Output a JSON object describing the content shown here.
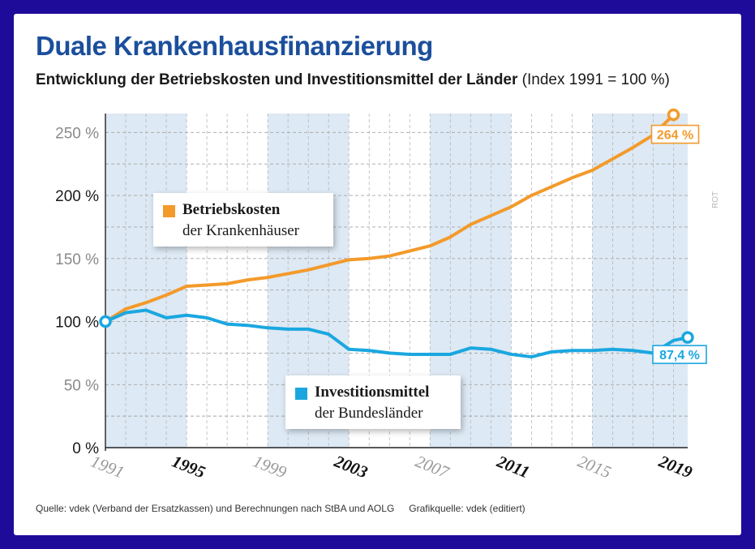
{
  "chart_data": {
    "type": "line",
    "title": "Duale Krankenhausfinanzierung",
    "subtitle_main": "Entwicklung der Betriebskosten und Investitionsmittel der Länder",
    "subtitle_note": "(Index 1991 = 100 %)",
    "ylim": [
      0,
      265
    ],
    "yticks": [
      0,
      50,
      100,
      150,
      200,
      250
    ],
    "ytick_labels": [
      "0 %",
      "50 %",
      "100 %",
      "150 %",
      "200 %",
      "250 %"
    ],
    "xlim": [
      1991,
      2019.7
    ],
    "xticks": [
      1991,
      1995,
      1999,
      2003,
      2007,
      2011,
      2015,
      2019
    ],
    "xtick_labels": [
      "1991",
      "1995",
      "1999",
      "2003",
      "2007",
      "2011",
      "2015",
      "2019"
    ],
    "xtick_bold": [
      false,
      true,
      false,
      true,
      false,
      true,
      false,
      true
    ],
    "bands": [
      [
        1991,
        1995
      ],
      [
        1999,
        2003
      ],
      [
        2007,
        2011
      ],
      [
        2015,
        2019.7
      ]
    ],
    "series": [
      {
        "name": "Betriebskosten der Krankenhäuser",
        "legend_line1": "Betriebskosten",
        "legend_line2": "der Krankenhäuser",
        "color": "#f39a2b",
        "x": [
          1991,
          1992,
          1993,
          1994,
          1995,
          1996,
          1997,
          1998,
          1999,
          2000,
          2001,
          2002,
          2003,
          2004,
          2005,
          2006,
          2007,
          2008,
          2009,
          2010,
          2011,
          2012,
          2013,
          2014,
          2015,
          2016,
          2017,
          2018,
          2019
        ],
        "values": [
          100,
          110,
          115,
          121,
          128,
          129,
          130,
          133,
          135,
          138,
          141,
          145,
          149,
          150,
          152,
          156,
          160,
          167,
          177,
          184,
          191,
          200,
          207,
          214,
          220,
          229,
          238,
          248,
          264
        ],
        "end_label": "264 %"
      },
      {
        "name": "Investitionsmittel der Bundesländer",
        "legend_line1": "Investitionsmittel",
        "legend_line2": "der Bundesländer",
        "color": "#1aa7e0",
        "x": [
          1991,
          1992,
          1993,
          1994,
          1995,
          1996,
          1997,
          1998,
          1999,
          2000,
          2001,
          2002,
          2003,
          2004,
          2005,
          2006,
          2007,
          2008,
          2009,
          2010,
          2011,
          2012,
          2013,
          2014,
          2015,
          2016,
          2017,
          2018,
          2019,
          2019.7
        ],
        "values": [
          100,
          107,
          109,
          103,
          105,
          103,
          98,
          97,
          95,
          94,
          94,
          90,
          78,
          77,
          75,
          74,
          74,
          74,
          79,
          78,
          74,
          72,
          76,
          77,
          77,
          78,
          77,
          75,
          85,
          87.4
        ],
        "end_label": "87,4 %"
      }
    ]
  },
  "footer": {
    "source": "Quelle: vdek (Verband der Ersatzkassen) und Berechnungen nach StBA und AOLG",
    "credit": "Grafikquelle: vdek (editiert)"
  },
  "side_credit": "ROT"
}
